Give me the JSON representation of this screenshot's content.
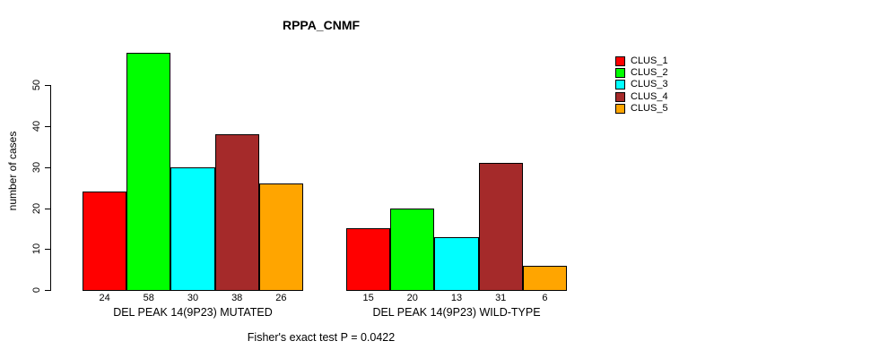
{
  "title": "RPPA_CNMF",
  "annotation": "Fisher's exact test P = 0.0422",
  "chart_data": {
    "type": "bar",
    "title": "RPPA_CNMF",
    "xlabel": "",
    "ylabel": "number of cases",
    "ylim": [
      0,
      58
    ],
    "yticks": [
      0,
      10,
      20,
      30,
      40,
      50
    ],
    "grid": false,
    "legend_position": "right",
    "series": [
      {
        "name": "CLUS_1",
        "color": "#ff0000"
      },
      {
        "name": "CLUS_2",
        "color": "#00ff00"
      },
      {
        "name": "CLUS_3",
        "color": "#00ffff"
      },
      {
        "name": "CLUS_4",
        "color": "#a52a2a"
      },
      {
        "name": "CLUS_5",
        "color": "#ffa500"
      }
    ],
    "groups": [
      {
        "label": "DEL PEAK 14(9P23) MUTATED",
        "values": [
          24,
          58,
          30,
          38,
          26
        ],
        "bar_labels": [
          "24",
          "58",
          "30",
          "38",
          "26"
        ]
      },
      {
        "label": "DEL PEAK 14(9P23) WILD-TYPE",
        "values": [
          15,
          20,
          13,
          31,
          6
        ],
        "bar_labels": [
          "15",
          "20",
          "13",
          "31",
          "6"
        ]
      }
    ],
    "annotation": "Fisher's exact test P = 0.0422"
  }
}
